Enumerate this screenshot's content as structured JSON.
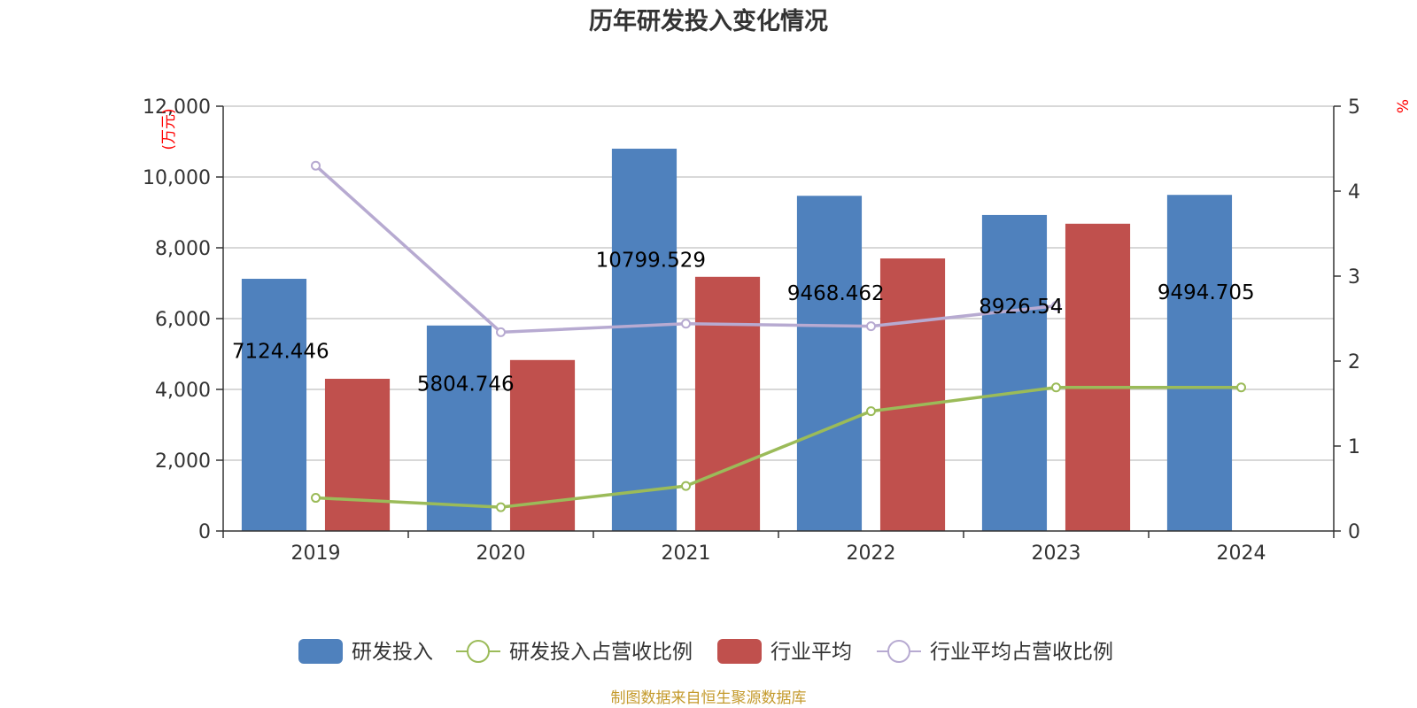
{
  "chart_data": {
    "type": "bar",
    "title": "历年研发投入变化情况",
    "categories": [
      "2019",
      "2020",
      "2021",
      "2022",
      "2023",
      "2024"
    ],
    "y_left": {
      "unit": "(万元)",
      "ticks": [
        "0",
        "2,000",
        "4,000",
        "6,000",
        "8,000",
        "10,000",
        "12,000"
      ],
      "ylim": [
        0,
        12000
      ]
    },
    "y_right": {
      "unit": "%",
      "ticks": [
        "0",
        "1",
        "2",
        "3",
        "4",
        "5"
      ],
      "ylim": [
        0,
        5
      ]
    },
    "series": [
      {
        "name": "研发投入",
        "kind": "bar",
        "axis": "left",
        "color": "#4f81bd",
        "values": [
          7124.446,
          5804.746,
          10799.529,
          9468.462,
          8926.54,
          9494.705
        ],
        "labels": [
          "7124.446",
          "5804.746",
          "10799.529",
          "9468.462",
          "8926.54",
          "9494.705"
        ]
      },
      {
        "name": "研发投入占营收比例",
        "kind": "line",
        "axis": "right",
        "color": "#9bbb59",
        "values": [
          0.39,
          0.28,
          0.53,
          1.41,
          1.69,
          1.69
        ]
      },
      {
        "name": "行业平均",
        "kind": "bar",
        "axis": "left",
        "color": "#c0504d",
        "values": [
          4300,
          4830,
          7180,
          7700,
          8680,
          null
        ]
      },
      {
        "name": "行业平均占营收比例",
        "kind": "line",
        "axis": "right",
        "color": "#b7aad1",
        "values": [
          4.3,
          2.34,
          2.44,
          2.41,
          2.65,
          null
        ]
      }
    ],
    "legend_position": "bottom"
  },
  "footer": {
    "source": "制图数据来自恒生聚源数据库"
  }
}
